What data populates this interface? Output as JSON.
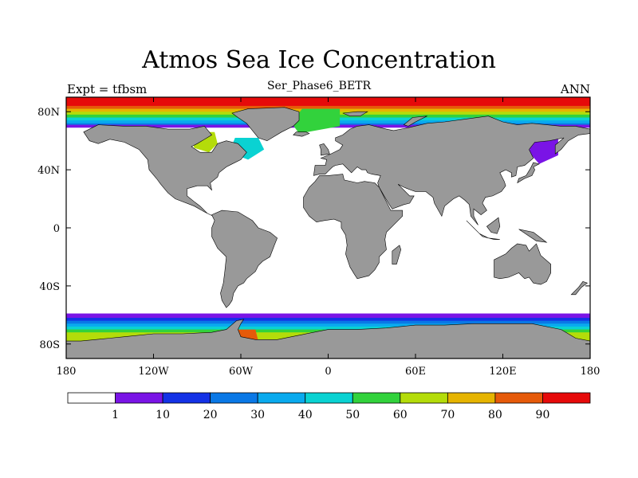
{
  "title": "Atmos Sea Ice Concentration",
  "subtitle": "Ser_Phase6_BETR",
  "left_label": "Expt = tfbsm",
  "right_label": "ANN",
  "colors": {
    "land": "#999999",
    "ocean": "#ffffff",
    "outline": "#000000",
    "levels": [
      "#ffffff",
      "#7a14e6",
      "#1432e6",
      "#0a78e6",
      "#0aaaee",
      "#0ad2d2",
      "#32d23c",
      "#b4dc0a",
      "#e6b400",
      "#e65a0a",
      "#e60a0a"
    ]
  },
  "chart_data": {
    "type": "heatmap",
    "variable": "Atmos Sea Ice Concentration",
    "season": "ANN",
    "experiment": "tfbsm",
    "case": "Ser_Phase6_BETR",
    "units": "%",
    "projection": "cylindrical equidistant",
    "lon_range": [
      -180,
      180
    ],
    "lat_range": [
      -90,
      90
    ],
    "x_ticks": [
      {
        "value": -180,
        "label": "180"
      },
      {
        "value": -120,
        "label": "120W"
      },
      {
        "value": -60,
        "label": "60W"
      },
      {
        "value": 0,
        "label": "0"
      },
      {
        "value": 60,
        "label": "60E"
      },
      {
        "value": 120,
        "label": "120E"
      },
      {
        "value": 180,
        "label": "180"
      }
    ],
    "y_ticks": [
      {
        "value": 80,
        "label": "80N"
      },
      {
        "value": 40,
        "label": "40N"
      },
      {
        "value": 0,
        "label": "0"
      },
      {
        "value": -40,
        "label": "40S"
      },
      {
        "value": -80,
        "label": "80S"
      }
    ],
    "colorbar_levels": [
      1,
      10,
      20,
      30,
      40,
      50,
      60,
      70,
      80,
      90
    ],
    "colorbar_labels": [
      "1",
      "10",
      "20",
      "30",
      "40",
      "50",
      "60",
      "70",
      "80",
      "90"
    ],
    "arctic_ice_bands": [
      {
        "level": 90,
        "lat_min": 84
      },
      {
        "level": 80,
        "lat_min": 82
      },
      {
        "level": 70,
        "lat_min": 80
      },
      {
        "level": 60,
        "lat_min": 78
      },
      {
        "level": 50,
        "lat_min": 76
      },
      {
        "level": 40,
        "lat_min": 74
      },
      {
        "level": 30,
        "lat_min": 72
      },
      {
        "level": 20,
        "lat_min": 71
      },
      {
        "level": 1,
        "lat_min": 69
      }
    ],
    "antarctic_ice_bands": [
      {
        "level": 1,
        "lat_max": -59
      },
      {
        "level": 10,
        "lat_max": -62
      },
      {
        "level": 20,
        "lat_max": -64
      },
      {
        "level": 30,
        "lat_max": -66
      },
      {
        "level": 40,
        "lat_max": -68
      },
      {
        "level": 50,
        "lat_max": -70
      },
      {
        "level": 60,
        "lat_max": -72
      }
    ],
    "regional_patches": [
      {
        "region": "Hudson Bay",
        "level": 60
      },
      {
        "region": "Labrador Sea",
        "level": 40
      },
      {
        "region": "Greenland Sea",
        "level": 50
      },
      {
        "region": "Sea of Okhotsk",
        "level": 1
      },
      {
        "region": "Weddell Sea",
        "level": 80
      }
    ]
  }
}
